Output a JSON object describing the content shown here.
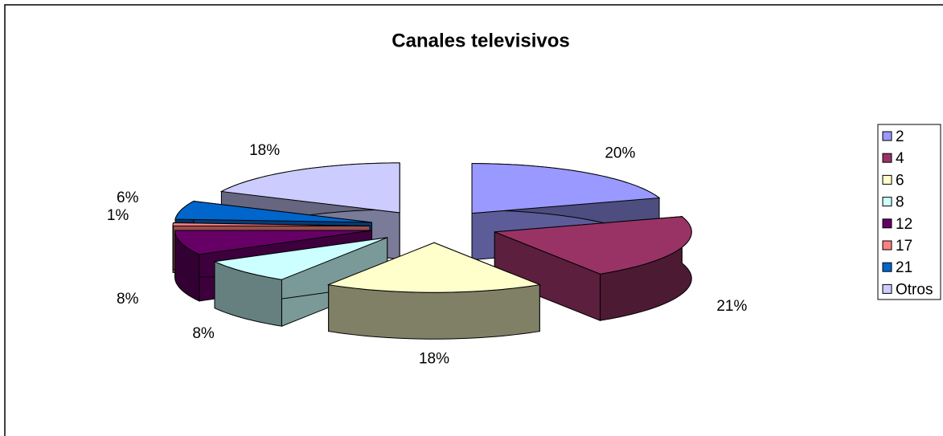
{
  "chart_data": {
    "type": "pie3d",
    "title": "Canales televisivos",
    "categories": [
      "2",
      "4",
      "6",
      "8",
      "12",
      "17",
      "21",
      "Otros"
    ],
    "values": [
      20,
      21,
      18,
      8,
      8,
      1,
      6,
      18
    ],
    "value_labels": [
      "20%",
      "21%",
      "18%",
      "8%",
      "8%",
      "1%",
      "6%",
      "18%"
    ],
    "colors": [
      "#9999ff",
      "#993366",
      "#ffffcc",
      "#ccffff",
      "#660066",
      "#ff8080",
      "#0066cc",
      "#ccccff"
    ],
    "legend": "right"
  }
}
